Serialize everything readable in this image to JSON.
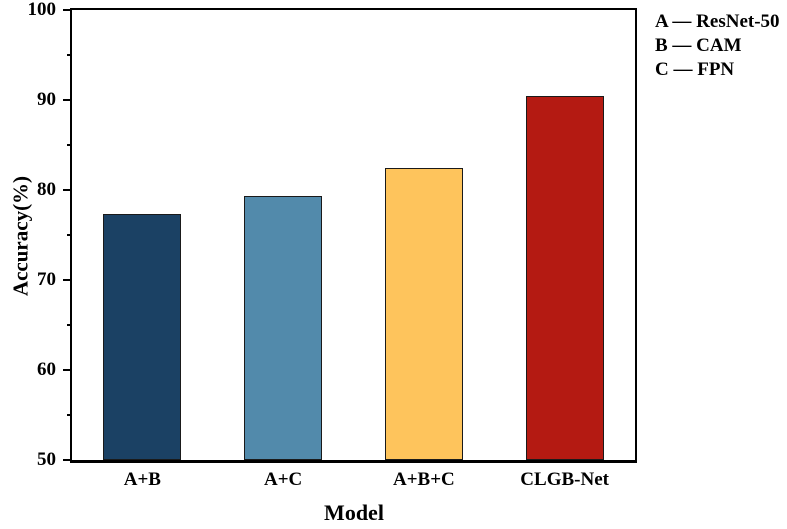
{
  "chart_data": {
    "type": "bar",
    "title": "",
    "categories": [
      "A+B",
      "A+C",
      "A+B+C",
      "CLGB-Net"
    ],
    "values": [
      77.3,
      79.3,
      82.4,
      90.4
    ],
    "bar_colors": [
      "#1b4164",
      "#528aab",
      "#fec45c",
      "#b41a12"
    ],
    "bar_edge_color": "#1a1a1a",
    "xlabel": "Model",
    "ylabel": "Accuracy(%)",
    "ylim": [
      50,
      100
    ],
    "yticks_major": [
      50,
      60,
      70,
      80,
      90,
      100
    ],
    "yticks_minor": [
      55,
      65,
      75,
      85,
      95
    ],
    "grid": false,
    "frame": "full-box",
    "legend_position": "outside-top-right"
  },
  "legend": {
    "items": [
      "A — ResNet-50",
      "B — CAM",
      "C — FPN"
    ]
  }
}
